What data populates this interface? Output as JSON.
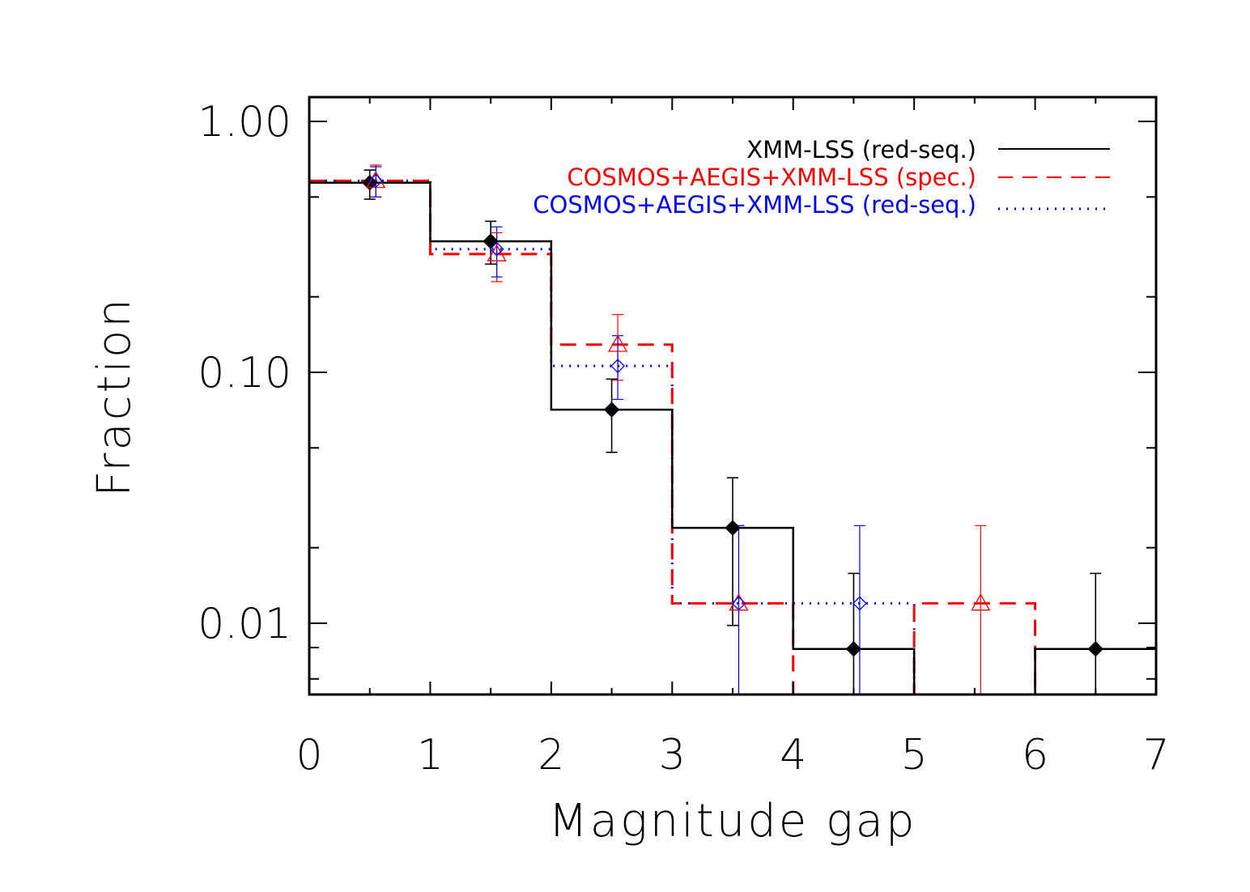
{
  "chart_data": {
    "type": "histogram",
    "title": "",
    "xlabel": "Magnitude gap",
    "ylabel": "Fraction",
    "xlim": [
      0,
      7
    ],
    "ylim": [
      0.0052,
      1.25
    ],
    "yscale": "log",
    "x_ticks": [
      0,
      1,
      2,
      3,
      4,
      5,
      6,
      7
    ],
    "x_tick_labels": [
      "0",
      "1",
      "2",
      "3",
      "4",
      "5",
      "6",
      "7"
    ],
    "y_ticks": [
      0.01,
      0.1,
      1.0
    ],
    "y_tick_labels": [
      "0.01",
      "0.10",
      "1.00"
    ],
    "legend_position": "top-right",
    "series": [
      {
        "name": "XMM-LSS (red-seq.)",
        "color": "#000000",
        "line_style": "solid",
        "marker": "filled-diamond",
        "bin_edges": [
          0,
          1,
          2,
          3,
          4,
          5,
          6,
          7
        ],
        "values": [
          0.57,
          0.333,
          0.071,
          0.024,
          0.0079,
          null,
          0.0079
        ],
        "points": [
          {
            "x": 0.5,
            "y": 0.57,
            "err_lo": 0.49,
            "err_hi": 0.64
          },
          {
            "x": 1.5,
            "y": 0.333,
            "err_lo": 0.27,
            "err_hi": 0.4
          },
          {
            "x": 2.5,
            "y": 0.071,
            "err_lo": 0.048,
            "err_hi": 0.094
          },
          {
            "x": 3.5,
            "y": 0.024,
            "err_lo": 0.0098,
            "err_hi": 0.038
          },
          {
            "x": 4.5,
            "y": 0.0079,
            "err_lo": 0.0052,
            "err_hi": 0.0158
          },
          {
            "x": 6.5,
            "y": 0.0079,
            "err_lo": 0.0052,
            "err_hi": 0.0158
          }
        ]
      },
      {
        "name": "COSMOS+AEGIS+XMM-LSS (spec.)",
        "color": "#ff0000",
        "line_style": "dashed",
        "marker": "open-triangle",
        "bin_edges": [
          0,
          1,
          2,
          3,
          4,
          5,
          6,
          7
        ],
        "values": [
          0.58,
          0.296,
          0.129,
          0.012,
          null,
          0.012,
          null
        ],
        "points": [
          {
            "x": 0.55,
            "y": 0.58,
            "err_lo": 0.5,
            "err_hi": 0.67
          },
          {
            "x": 1.55,
            "y": 0.296,
            "err_lo": 0.23,
            "err_hi": 0.36
          },
          {
            "x": 2.55,
            "y": 0.129,
            "err_lo": 0.093,
            "err_hi": 0.17
          },
          {
            "x": 3.55,
            "y": 0.012,
            "err_lo": 0.0052,
            "err_hi": 0.0245
          },
          {
            "x": 5.55,
            "y": 0.012,
            "err_lo": 0.0052,
            "err_hi": 0.0245
          }
        ]
      },
      {
        "name": "COSMOS+AEGIS+XMM-LSS (red-seq.)",
        "color": "#0000ff",
        "line_style": "dotted",
        "marker": "open-diamond",
        "bin_edges": [
          0,
          1,
          2,
          3,
          4,
          5,
          6,
          7
        ],
        "values": [
          0.58,
          0.31,
          0.106,
          0.012,
          0.012,
          null,
          null
        ],
        "points": [
          {
            "x": 0.55,
            "y": 0.58,
            "err_lo": 0.5,
            "err_hi": 0.66
          },
          {
            "x": 1.55,
            "y": 0.31,
            "err_lo": 0.24,
            "err_hi": 0.38
          },
          {
            "x": 2.55,
            "y": 0.106,
            "err_lo": 0.078,
            "err_hi": 0.14
          },
          {
            "x": 3.55,
            "y": 0.012,
            "err_lo": 0.0052,
            "err_hi": 0.0245
          },
          {
            "x": 4.55,
            "y": 0.012,
            "err_lo": 0.0052,
            "err_hi": 0.0245
          }
        ]
      }
    ]
  }
}
